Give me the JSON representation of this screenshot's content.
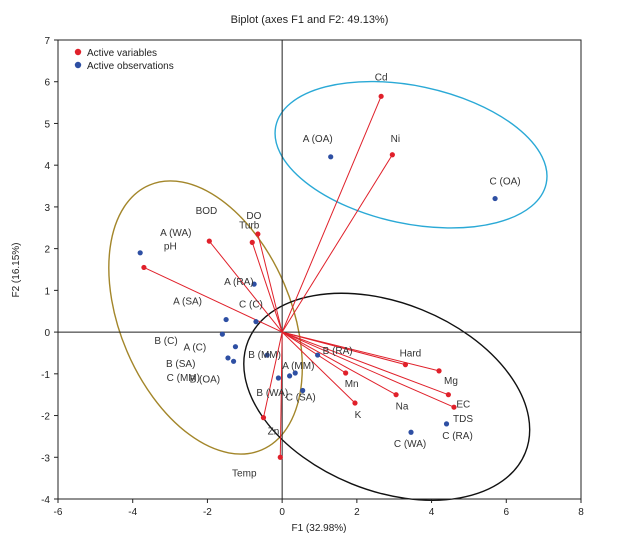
{
  "chart_data": {
    "type": "scatter",
    "title": "Biplot (axes F1 and F2: 49.13%)",
    "xlabel": "F1 (32.98%)",
    "ylabel": "F2 (16.15%)",
    "xlim": [
      -6,
      8
    ],
    "ylim": [
      -4,
      7
    ],
    "xticks": [
      -6,
      -4,
      -2,
      0,
      2,
      4,
      6,
      8
    ],
    "yticks": [
      -4,
      -3,
      -2,
      -1,
      0,
      1,
      2,
      3,
      4,
      5,
      6,
      7
    ],
    "grid": false,
    "legend_position": "top-left",
    "colors": {
      "variables": "#e0202a",
      "observations": "#2e4fa3",
      "ellipse_gold": "#a3862a",
      "ellipse_cyan": "#2aa9d6",
      "ellipse_black": "#111111",
      "zero_line": "#222222",
      "frame": "#222222"
    },
    "series": [
      {
        "name": "Active variables",
        "points": [
          {
            "label": "Cd",
            "x": 2.65,
            "y": 5.65
          },
          {
            "label": "Ni",
            "x": 2.95,
            "y": 4.25
          },
          {
            "label": "BOD",
            "x": -1.95,
            "y": 2.18
          },
          {
            "label": "Turb",
            "x": -0.8,
            "y": 2.15
          },
          {
            "label": "DO",
            "x": -0.65,
            "y": 2.35
          },
          {
            "label": "pH",
            "x": -3.7,
            "y": 1.55
          },
          {
            "label": "Hard",
            "x": 3.3,
            "y": -0.78
          },
          {
            "label": "Mg",
            "x": 4.2,
            "y": -0.93
          },
          {
            "label": "EC",
            "x": 4.45,
            "y": -1.5
          },
          {
            "label": "TDS",
            "x": 4.6,
            "y": -1.8
          },
          {
            "label": "Mn",
            "x": 1.7,
            "y": -0.98
          },
          {
            "label": "Na",
            "x": 3.05,
            "y": -1.5
          },
          {
            "label": "K",
            "x": 1.95,
            "y": -1.7
          },
          {
            "label": "Zn",
            "x": -0.5,
            "y": -2.05
          },
          {
            "label": "Temp",
            "x": -0.05,
            "y": -3.0
          }
        ]
      },
      {
        "name": "Active observations",
        "points": [
          {
            "label": "A (OA)",
            "x": 1.3,
            "y": 4.2
          },
          {
            "label": "C (OA)",
            "x": 5.7,
            "y": 3.2
          },
          {
            "label": "A (WA)",
            "x": -3.8,
            "y": 1.9
          },
          {
            "label": "A (RA)",
            "x": -0.75,
            "y": 1.15
          },
          {
            "label": "A (SA)",
            "x": -1.5,
            "y": 0.3
          },
          {
            "label": "C (C)",
            "x": -0.7,
            "y": 0.25
          },
          {
            "label": "B (C)",
            "x": -1.6,
            "y": -0.05
          },
          {
            "label": "A (C)",
            "x": -1.25,
            "y": -0.35
          },
          {
            "label": "B (SA)",
            "x": -1.45,
            "y": -0.62
          },
          {
            "label": "B (OA)",
            "x": -1.3,
            "y": -0.7
          },
          {
            "label": "B (MM)",
            "x": -0.4,
            "y": -0.55
          },
          {
            "label": "B (RA)",
            "x": 0.95,
            "y": -0.55
          },
          {
            "label": "A (MM)",
            "x": 0.35,
            "y": -0.98
          },
          {
            "label": "C (MM)",
            "x": 0.2,
            "y": -1.05
          },
          {
            "label": "B (WA)",
            "x": -0.1,
            "y": -1.1
          },
          {
            "label": "C (SA)",
            "x": 0.55,
            "y": -1.4
          },
          {
            "label": "C (WA)",
            "x": 3.45,
            "y": -2.4
          },
          {
            "label": "C (RA)",
            "x": 4.4,
            "y": -2.2
          }
        ]
      }
    ],
    "ellipses": [
      {
        "name": "gold",
        "cx": -2.05,
        "cy": 0.35,
        "rx": 3.85,
        "ry": 2.05,
        "rotation_deg": 113
      },
      {
        "name": "cyan",
        "cx": 3.45,
        "cy": 4.25,
        "rx": 3.7,
        "ry": 1.65,
        "rotation_deg": -12
      },
      {
        "name": "black",
        "cx": 2.8,
        "cy": -1.55,
        "rx": 4.0,
        "ry": 2.25,
        "rotation_deg": -22
      }
    ]
  }
}
